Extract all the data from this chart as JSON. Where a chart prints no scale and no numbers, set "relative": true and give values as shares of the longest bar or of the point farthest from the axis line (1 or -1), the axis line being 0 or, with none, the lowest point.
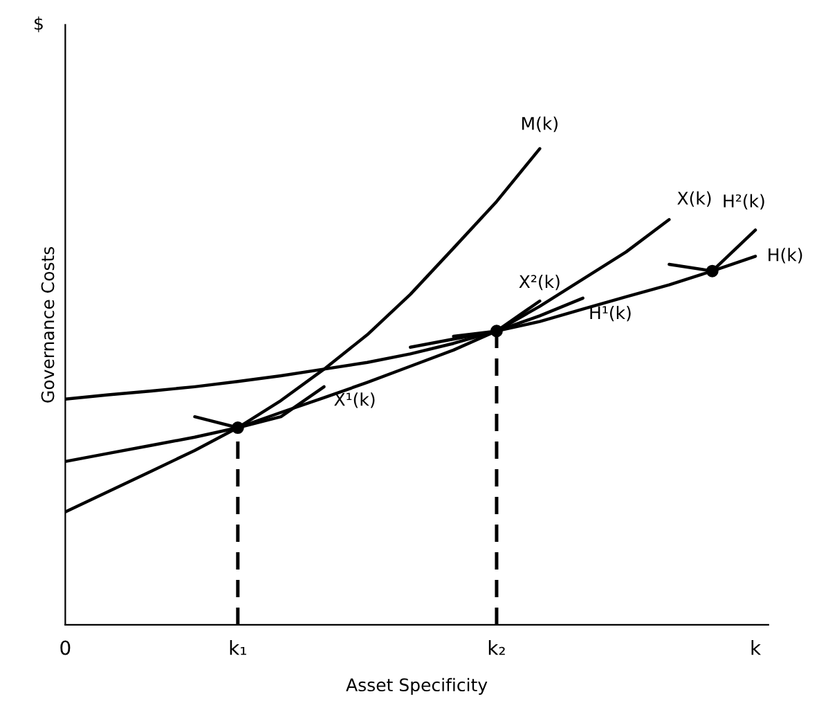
{
  "chart_data": {
    "type": "line",
    "relative": true,
    "xlabel": "Asset Specificity",
    "ylabel": "Governance Costs",
    "annotations": [
      "$"
    ],
    "categories": [
      "0",
      null,
      null,
      null,
      "k₁",
      null,
      null,
      null,
      null,
      null,
      "k₂",
      null,
      null,
      null,
      null,
      null,
      "k"
    ],
    "grid": false,
    "legend": false,
    "marker": "none",
    "line_style": "solid",
    "series": [
      {
        "name": "M(k)",
        "color": "#000000",
        "values": [
          0.237,
          0.28,
          0.323,
          0.366,
          0.414,
          0.471,
          0.537,
          0.609,
          0.694,
          0.791,
          0.889,
          1.0,
          null,
          null,
          null,
          null,
          null
        ]
      },
      {
        "name": "X(k)",
        "color": "#000000",
        "values": [
          0.343,
          0.36,
          0.377,
          0.394,
          0.414,
          0.446,
          0.477,
          0.509,
          0.543,
          0.577,
          0.617,
          0.669,
          0.726,
          0.783,
          0.851,
          null,
          null
        ]
      },
      {
        "name": "H(k)",
        "color": "#000000",
        "values": [
          0.474,
          0.483,
          0.491,
          0.5,
          0.511,
          0.523,
          0.537,
          0.551,
          0.569,
          0.591,
          0.617,
          0.637,
          0.663,
          0.689,
          0.714,
          0.743,
          0.774
        ]
      },
      {
        "name": "X¹(k)",
        "color": "#000000",
        "values": [
          null,
          null,
          null,
          0.437,
          0.414,
          0.437,
          0.5,
          null,
          null,
          null,
          null,
          null,
          null,
          null,
          null,
          null,
          null
        ]
      },
      {
        "name": "X²(k)",
        "color": "#000000",
        "values": [
          null,
          null,
          null,
          null,
          null,
          null,
          null,
          null,
          null,
          0.606,
          0.617,
          0.68,
          null,
          null,
          null,
          null,
          null
        ]
      },
      {
        "name": "H¹(k)",
        "color": "#000000",
        "values": [
          null,
          null,
          null,
          null,
          null,
          null,
          null,
          null,
          0.583,
          0.6,
          0.617,
          0.649,
          0.686,
          null,
          null,
          null,
          null
        ]
      },
      {
        "name": "H²(k)",
        "color": "#000000",
        "values": [
          null,
          null,
          null,
          null,
          null,
          null,
          null,
          null,
          null,
          null,
          null,
          null,
          null,
          null,
          0.757,
          0.743,
          0.829
        ]
      },
      {
        "type": "lollipop",
        "marker": "circle",
        "line_style": "dashed",
        "color": "#000000",
        "values": [
          null,
          null,
          null,
          null,
          0.414,
          null,
          null,
          null,
          null,
          null,
          0.617,
          null,
          null,
          null,
          null,
          null,
          null
        ]
      },
      {
        "type": "scatter",
        "marker": "circle",
        "color": "#000000",
        "values": [
          null,
          null,
          null,
          null,
          null,
          null,
          null,
          null,
          null,
          null,
          null,
          null,
          null,
          null,
          null,
          0.743,
          null
        ]
      }
    ]
  }
}
